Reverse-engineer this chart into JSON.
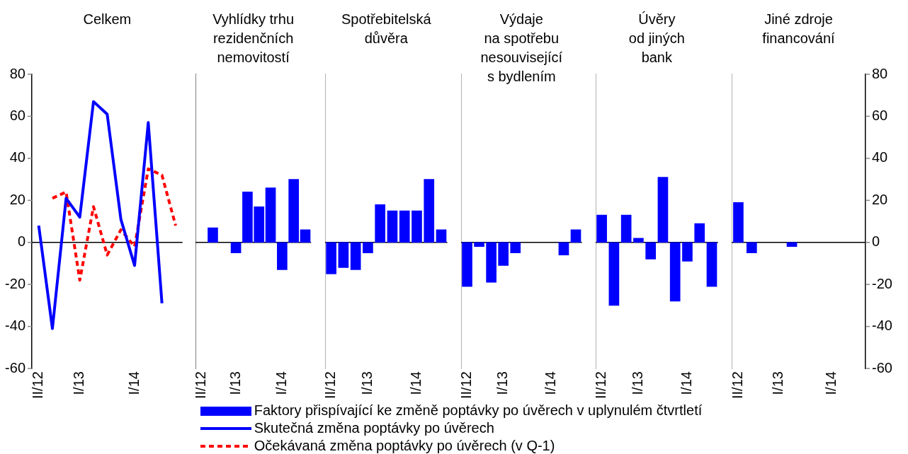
{
  "chart_data": [
    {
      "type": "line",
      "title": "Celkem",
      "categories": [
        "II/12",
        null,
        null,
        "I/13",
        null,
        null,
        null,
        "I/14",
        null,
        null,
        null
      ],
      "ylim": [
        -60,
        80
      ],
      "yticks": [
        -60,
        -40,
        -20,
        0,
        20,
        40,
        60,
        80
      ],
      "grid": false,
      "legend": "bottom",
      "marker": "none",
      "ref_lines": [
        {
          "axis": "y",
          "value": 0
        }
      ],
      "series": [
        {
          "name": "Skutečná změna poptávky po úvěrech",
          "color": "#0000ff",
          "line_style": "solid",
          "values": [
            8,
            -41,
            21,
            12,
            67,
            61,
            11,
            -11,
            57,
            -29,
            null
          ]
        },
        {
          "name": "Očekávaná změna poptávky po úvěrech (v Q-1)",
          "color": "#ff0000",
          "line_style": "dashed",
          "values": [
            null,
            21,
            24,
            -18,
            17,
            -6,
            6,
            -2,
            35,
            32,
            8
          ]
        }
      ]
    },
    {
      "type": "bar",
      "title": "Vyhlídky trhu\nrezidenčních\nnemovitostí",
      "categories": [
        "II/12",
        null,
        null,
        "I/13",
        null,
        null,
        null,
        "I/14",
        null,
        null
      ],
      "ylim": [
        -60,
        80
      ],
      "tick_labels": "x",
      "grid": false,
      "legend": "bottom",
      "ref_lines": [
        {
          "axis": "y",
          "value": 0
        }
      ],
      "series": [
        {
          "name": "Faktory přispívající ke změně poptávky po úvěrech v uplynulém čtvrtletí",
          "color": "#0000ff",
          "values": [
            null,
            7,
            null,
            -5,
            24,
            17,
            26,
            -13,
            30,
            6
          ]
        }
      ]
    },
    {
      "type": "bar",
      "title": "Spotřebitelská\ndůvěra",
      "categories": [
        "II/12",
        null,
        null,
        "I/13",
        null,
        null,
        null,
        "I/14",
        null,
        null
      ],
      "ylim": [
        -60,
        80
      ],
      "tick_labels": "x",
      "grid": false,
      "ref_lines": [
        {
          "axis": "y",
          "value": 0
        }
      ],
      "series": [
        {
          "color": "#0000ff",
          "values": [
            -15,
            -12,
            -13,
            -5,
            18,
            15,
            15,
            15,
            30,
            6
          ]
        }
      ]
    },
    {
      "type": "bar",
      "title": "Výdaje\nna spotřebu\nnesouvisející\ns bydlením",
      "categories": [
        "II/12",
        null,
        null,
        "I/13",
        null,
        null,
        null,
        "I/14",
        null,
        null
      ],
      "ylim": [
        -60,
        80
      ],
      "tick_labels": "x",
      "grid": false,
      "ref_lines": [
        {
          "axis": "y",
          "value": 0
        }
      ],
      "series": [
        {
          "color": "#0000ff",
          "values": [
            -21,
            -2,
            -19,
            -11,
            -5,
            null,
            null,
            null,
            -6,
            6
          ]
        }
      ]
    },
    {
      "type": "bar",
      "title": "Úvěry\nod jiných\nbank",
      "categories": [
        "II/12",
        null,
        null,
        "I/13",
        null,
        null,
        null,
        "I/14",
        null,
        null
      ],
      "ylim": [
        -60,
        80
      ],
      "tick_labels": "x",
      "grid": false,
      "ref_lines": [
        {
          "axis": "y",
          "value": 0
        }
      ],
      "series": [
        {
          "color": "#0000ff",
          "values": [
            13,
            -30,
            13,
            2,
            -8,
            31,
            -28,
            -9,
            9,
            -21
          ]
        }
      ]
    },
    {
      "type": "bar",
      "title": "Jiné zdroje\nfinancování",
      "categories": [
        "II/12",
        null,
        null,
        "I/13",
        null,
        null,
        null,
        "I/14",
        null,
        null
      ],
      "y2lim": [
        -60,
        80
      ],
      "y2ticks": [
        -60,
        -40,
        -20,
        0,
        20,
        40,
        60,
        80
      ],
      "grid": false,
      "ref_lines": [
        {
          "axis": "y2",
          "value": 0
        }
      ],
      "series": [
        {
          "color": "#0000ff",
          "axis": "y2",
          "values": [
            19,
            -5,
            null,
            null,
            -2,
            null,
            null,
            null,
            null,
            null
          ]
        }
      ]
    }
  ]
}
